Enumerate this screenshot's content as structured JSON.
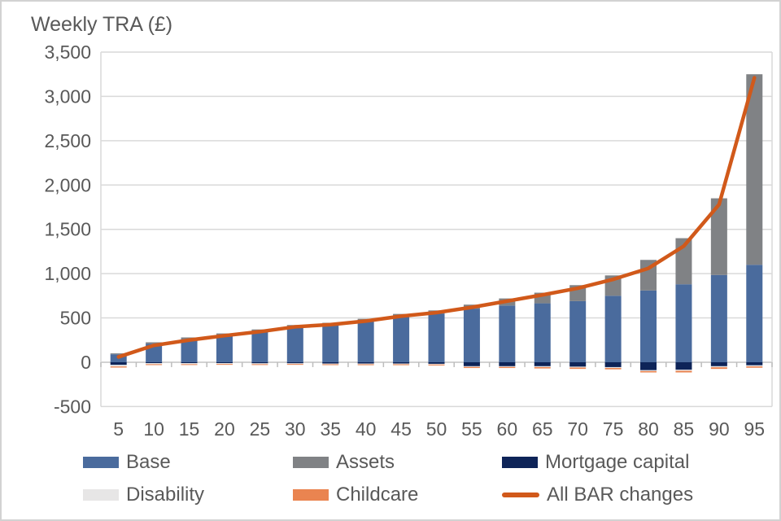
{
  "page": {
    "title": "Weekly TRA (£)"
  },
  "colors": {
    "base": "#4a6b9d",
    "assets": "#808285",
    "mortgage_capital": "#0e2458",
    "disability": "#e7e6e6",
    "childcare": "#ea8450",
    "line": "#d1591a",
    "grid": "#d9d9d9",
    "axis": "#bdbdbd",
    "text": "#595959"
  },
  "legend": {
    "rows": [
      [
        {
          "label": "Base",
          "swatch": "base",
          "type": "box"
        },
        {
          "label": "Assets",
          "swatch": "assets",
          "type": "box"
        },
        {
          "label": "Mortgage capital",
          "swatch": "mortgage_capital",
          "type": "box"
        }
      ],
      [
        {
          "label": "Disability",
          "swatch": "disability",
          "type": "box"
        },
        {
          "label": "Childcare",
          "swatch": "childcare",
          "type": "box"
        },
        {
          "label": "All BAR changes",
          "swatch": "line",
          "type": "line"
        }
      ]
    ]
  },
  "chart_data": {
    "type": "bar",
    "subtype": "stacked-bars-with-line-overlay",
    "title": "Weekly TRA (£)",
    "xlabel": "",
    "ylabel": "Weekly TRA (£)",
    "categories": [
      "5",
      "10",
      "15",
      "20",
      "25",
      "30",
      "35",
      "40",
      "45",
      "50",
      "55",
      "60",
      "65",
      "70",
      "75",
      "80",
      "85",
      "90",
      "95"
    ],
    "series": [
      {
        "name": "Base",
        "color_key": "base",
        "values": [
          90,
          210,
          265,
          310,
          350,
          395,
          420,
          460,
          510,
          550,
          605,
          640,
          665,
          690,
          750,
          810,
          880,
          985,
          1100
        ]
      },
      {
        "name": "Assets",
        "color_key": "assets",
        "values": [
          10,
          15,
          15,
          15,
          20,
          25,
          25,
          30,
          35,
          35,
          45,
          80,
          120,
          180,
          230,
          345,
          520,
          865,
          2150
        ]
      },
      {
        "name": "Mortgage capital",
        "color_key": "mortgage_capital",
        "values": [
          -30,
          -10,
          -10,
          -10,
          -12,
          -12,
          -15,
          -15,
          -15,
          -18,
          -45,
          -45,
          -45,
          -50,
          -55,
          -90,
          -85,
          -45,
          -35
        ]
      },
      {
        "name": "Disability",
        "color_key": "disability",
        "values": [
          -18,
          -12,
          -12,
          -10,
          -10,
          -8,
          -8,
          -8,
          -8,
          -8,
          -8,
          -8,
          -10,
          -10,
          -10,
          -10,
          -12,
          -12,
          -12
        ]
      },
      {
        "name": "Childcare",
        "color_key": "childcare",
        "values": [
          -12,
          -10,
          -8,
          -6,
          -6,
          -5,
          -5,
          -10,
          -10,
          -10,
          -12,
          -12,
          -15,
          -15,
          -15,
          -15,
          -18,
          -18,
          -15
        ]
      }
    ],
    "line_series": {
      "name": "All BAR changes",
      "color_key": "line",
      "values": [
        60,
        190,
        250,
        300,
        345,
        400,
        425,
        465,
        520,
        560,
        620,
        690,
        760,
        835,
        935,
        1060,
        1310,
        1780,
        3210
      ]
    },
    "ylim": [
      -500,
      3500
    ],
    "ytick_step": 500,
    "ytick_labels": [
      "3,500",
      "3,000",
      "2,500",
      "2,000",
      "1,500",
      "1,000",
      "500",
      "0",
      "-500"
    ],
    "grid": true,
    "legend_position": "bottom"
  }
}
